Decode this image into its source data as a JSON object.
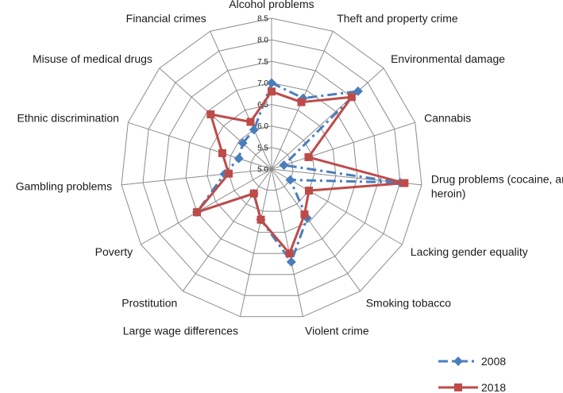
{
  "chart_data": {
    "type": "radar",
    "categories": [
      "Alcohol problems",
      "Theft and property crime",
      "Environmental damage",
      "Cannabis",
      "Drug problems (cocaine, amphetamine, heroin)",
      "Lacking gender equality",
      "Smoking tobacco",
      "Violent crime",
      "Large wage differences",
      "Prostitution",
      "Poverty",
      "Gambling problems",
      "Ethnic discrimination",
      "Misuse of medical drugs",
      "Financial crimes"
    ],
    "rlim": [
      5.0,
      8.5
    ],
    "ticks": [
      "5.0",
      "5.5",
      "6.0",
      "6.5",
      "7.0",
      "7.5",
      "8.0",
      "8.5"
    ],
    "grid": true,
    "legend_position": "bottom-right",
    "series": [
      {
        "name": "2008",
        "color": "#4a7ebb",
        "marker": "diamond",
        "line": "dash-dot",
        "values": [
          7.0,
          6.8,
          7.7,
          5.3,
          8.0,
          5.5,
          6.4,
          7.2,
          6.2,
          5.7,
          7.0,
          6.1,
          5.8,
          5.9,
          6.0
        ]
      },
      {
        "name": "2018",
        "color": "#be4b48",
        "marker": "square",
        "line": "solid",
        "values": [
          6.8,
          6.7,
          7.5,
          5.9,
          8.1,
          6.0,
          6.3,
          7.0,
          6.2,
          5.7,
          7.0,
          6.0,
          6.2,
          6.9,
          6.2
        ]
      }
    ]
  }
}
